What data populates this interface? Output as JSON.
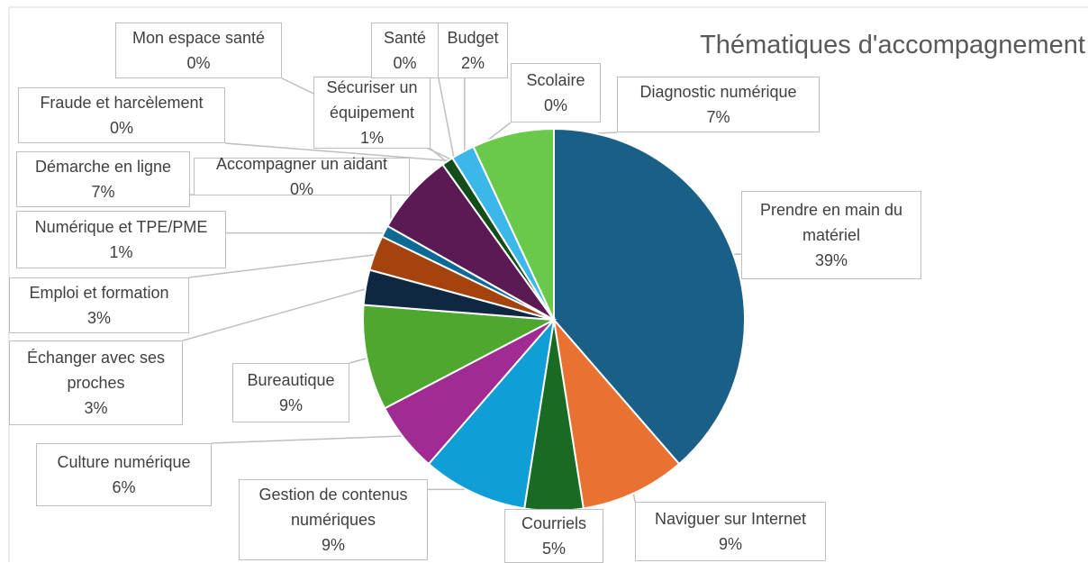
{
  "chart_data": {
    "type": "pie",
    "title": "Thématiques d'accompagnement",
    "categories": [
      "Prendre en main du matériel",
      "Naviguer sur Internet",
      "Courriels",
      "Gestion de contenus numériques",
      "Culture numérique",
      "Bureautique",
      "Échanger avec ses proches",
      "Emploi et formation",
      "Numérique et TPE/PME",
      "Accompagner un aidant",
      "Démarche en ligne",
      "Sécuriser un équipement",
      "Fraude et harcèlement",
      "Mon espace santé",
      "Santé",
      "Budget",
      "Scolaire",
      "Diagnostic numérique"
    ],
    "values": [
      39,
      9,
      5,
      9,
      6,
      9,
      3,
      3,
      1,
      0,
      7,
      1,
      0,
      0,
      0,
      2,
      0,
      7
    ],
    "value_labels": [
      "39%",
      "9%",
      "5%",
      "9%",
      "6%",
      "9%",
      "3%",
      "3%",
      "1%",
      "0%",
      "7%",
      "1%",
      "0%",
      "0%",
      "0%",
      "2%",
      "0%",
      "7%"
    ],
    "colors": [
      "#1a5f85",
      "#e97132",
      "#196b24",
      "#0f9ed5",
      "#a02b93",
      "#4ea72e",
      "#0e2841",
      "#a5430f",
      "#0c6a95",
      "#3b3b3b",
      "#5c1a55",
      "#144d1c",
      "#777777",
      "#888888",
      "#999999",
      "#3bb7ea",
      "#aaaaaa",
      "#6ac94a"
    ]
  }
}
